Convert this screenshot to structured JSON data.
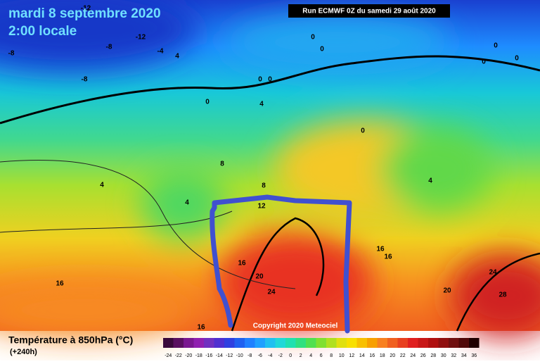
{
  "header": {
    "date": "mardi 8 septembre 2020",
    "time": "2:00 locale",
    "run": "Run ECMWF 0Z du samedi 29 août 2020"
  },
  "copyright": "Copyright 2020 Meteociel",
  "contour_labels": [
    -12,
    -12,
    -8,
    -8,
    -8,
    -4,
    4,
    0,
    0,
    0,
    0,
    0,
    0,
    0,
    0,
    0,
    4,
    4,
    4,
    4,
    8,
    8,
    12,
    16,
    16,
    16,
    16,
    16,
    20,
    20,
    24,
    24,
    28
  ],
  "legend": {
    "title": "Température à 850hPa (°C)",
    "subtitle": "(+240h)",
    "labels": [
      -24,
      -22,
      -20,
      -18,
      -16,
      -14,
      -12,
      -10,
      -8,
      -6,
      -4,
      -2,
      0,
      2,
      4,
      6,
      8,
      10,
      12,
      14,
      16,
      18,
      20,
      22,
      24,
      26,
      28,
      30,
      32,
      34,
      36
    ],
    "colors": [
      "#3a0a3a",
      "#5a1060",
      "#7a1890",
      "#9020b0",
      "#7030c0",
      "#5030d0",
      "#3040e0",
      "#2060f0",
      "#2080ff",
      "#20a0ff",
      "#20c0f0",
      "#20d8d8",
      "#20e0b0",
      "#30e080",
      "#50e050",
      "#80e030",
      "#b0e020",
      "#e0e010",
      "#f8e000",
      "#f8c000",
      "#f8a000",
      "#f88020",
      "#f06020",
      "#e84020",
      "#e02020",
      "#c81818",
      "#b01010",
      "#901010",
      "#701010",
      "#500808",
      "#200000"
    ]
  }
}
